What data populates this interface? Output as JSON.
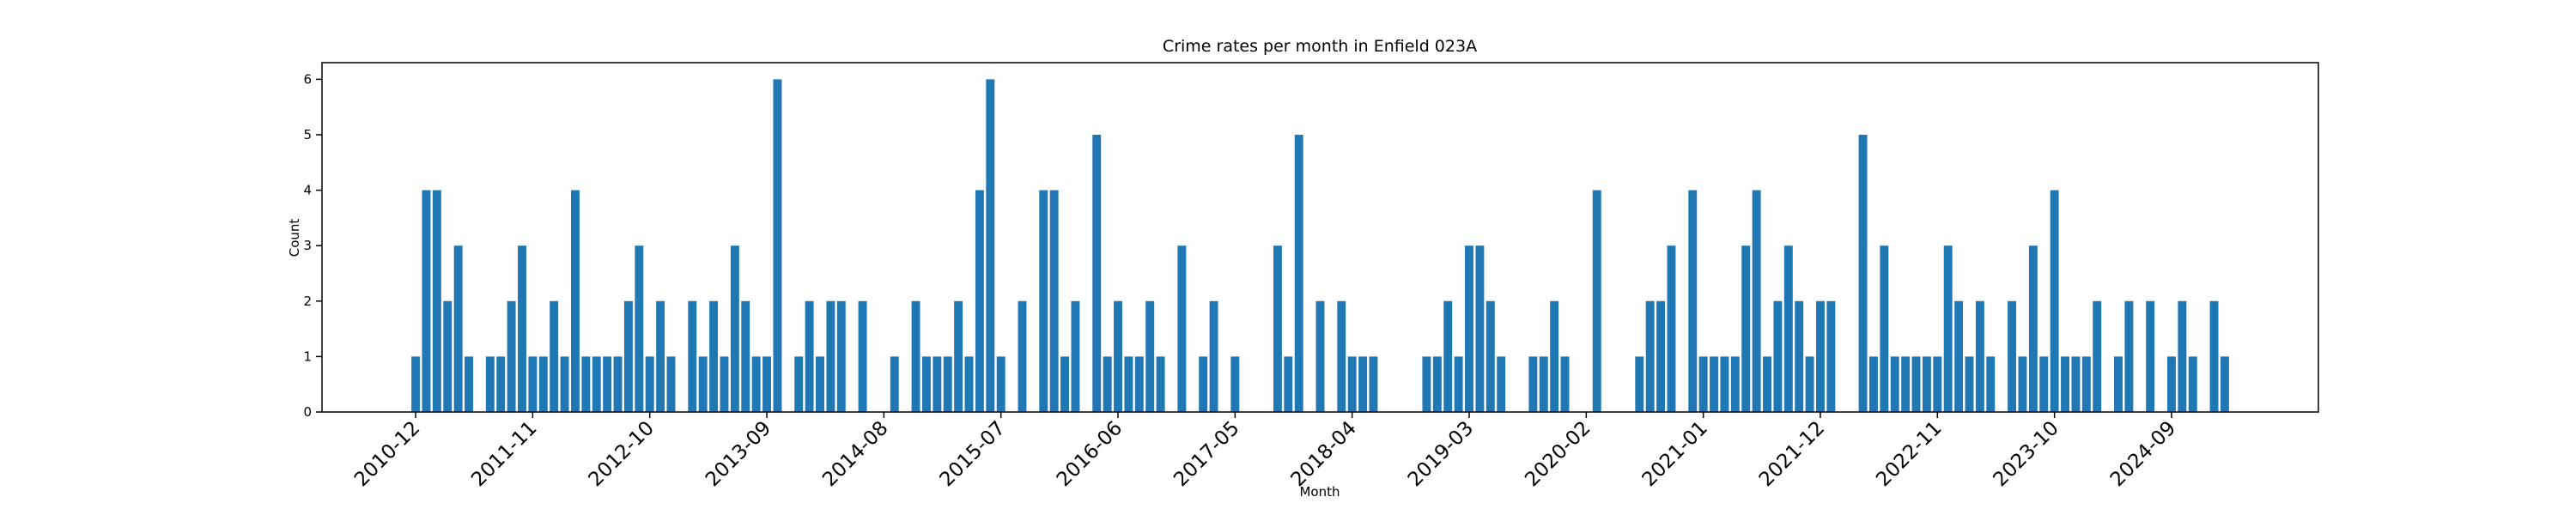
{
  "chart_data": {
    "type": "bar",
    "title": "Crime rates per month in Enfield 023A",
    "x_label": "Month",
    "y_label": "Count",
    "color": "#1f77b4",
    "categories": [
      "2010-12",
      null,
      null,
      null,
      null,
      null,
      null,
      null,
      null,
      null,
      null,
      "2011-11",
      null,
      null,
      null,
      null,
      null,
      null,
      null,
      null,
      null,
      null,
      "2012-10",
      null,
      null,
      null,
      null,
      null,
      null,
      null,
      null,
      null,
      null,
      "2013-09",
      null,
      null,
      null,
      null,
      null,
      null,
      null,
      null,
      null,
      null,
      "2014-08",
      null,
      null,
      null,
      null,
      null,
      null,
      null,
      null,
      null,
      null,
      "2015-07",
      null,
      null,
      null,
      null,
      null,
      null,
      null,
      null,
      null,
      null,
      "2016-06",
      null,
      null,
      null,
      null,
      null,
      null,
      null,
      null,
      null,
      null,
      "2017-05",
      null,
      null,
      null,
      null,
      null,
      null,
      null,
      null,
      null,
      null,
      "2018-04",
      null,
      null,
      null,
      null,
      null,
      null,
      null,
      null,
      null,
      null,
      "2019-03",
      null,
      null,
      null,
      null,
      null,
      null,
      null,
      null,
      null,
      null,
      "2020-02",
      null,
      null,
      null,
      null,
      null,
      null,
      null,
      null,
      null,
      null,
      "2021-01",
      null,
      null,
      null,
      null,
      null,
      null,
      null,
      null,
      null,
      null,
      "2021-12",
      null,
      null,
      null,
      null,
      null,
      null,
      null,
      null,
      null,
      null,
      "2022-11",
      null,
      null,
      null,
      null,
      null,
      null,
      null,
      null,
      null,
      null,
      "2023-10",
      null,
      null,
      null,
      null,
      null,
      null,
      null,
      null,
      null,
      null,
      "2024-09",
      null,
      null,
      null,
      null,
      null
    ],
    "values": [
      1,
      4,
      4,
      2,
      3,
      1,
      0,
      1,
      1,
      2,
      3,
      1,
      1,
      2,
      1,
      4,
      1,
      1,
      1,
      1,
      2,
      3,
      1,
      2,
      1,
      0,
      2,
      1,
      2,
      1,
      3,
      2,
      1,
      1,
      6,
      0,
      1,
      2,
      1,
      2,
      2,
      0,
      2,
      0,
      0,
      1,
      0,
      2,
      1,
      1,
      1,
      2,
      1,
      4,
      6,
      1,
      0,
      2,
      0,
      4,
      4,
      1,
      2,
      0,
      5,
      1,
      2,
      1,
      1,
      2,
      1,
      0,
      3,
      0,
      1,
      2,
      0,
      1,
      0,
      0,
      0,
      3,
      1,
      5,
      0,
      2,
      0,
      2,
      1,
      1,
      1,
      0,
      0,
      0,
      0,
      1,
      1,
      2,
      1,
      3,
      3,
      2,
      1,
      0,
      0,
      1,
      1,
      2,
      1,
      0,
      0,
      4,
      0,
      0,
      0,
      1,
      2,
      2,
      3,
      0,
      4,
      1,
      1,
      1,
      1,
      3,
      4,
      1,
      2,
      3,
      2,
      1,
      2,
      2,
      0,
      0,
      5,
      1,
      3,
      1,
      1,
      1,
      1,
      1,
      3,
      2,
      1,
      2,
      1,
      0,
      2,
      1,
      3,
      1,
      4,
      1,
      1,
      1,
      2,
      0,
      1,
      2,
      0,
      2,
      0,
      1,
      2,
      1,
      0,
      2,
      1
    ],
    "ylim": [
      0,
      6.3
    ],
    "yticks": [
      0,
      1,
      2,
      3,
      4,
      5,
      6
    ],
    "grid": false
  }
}
